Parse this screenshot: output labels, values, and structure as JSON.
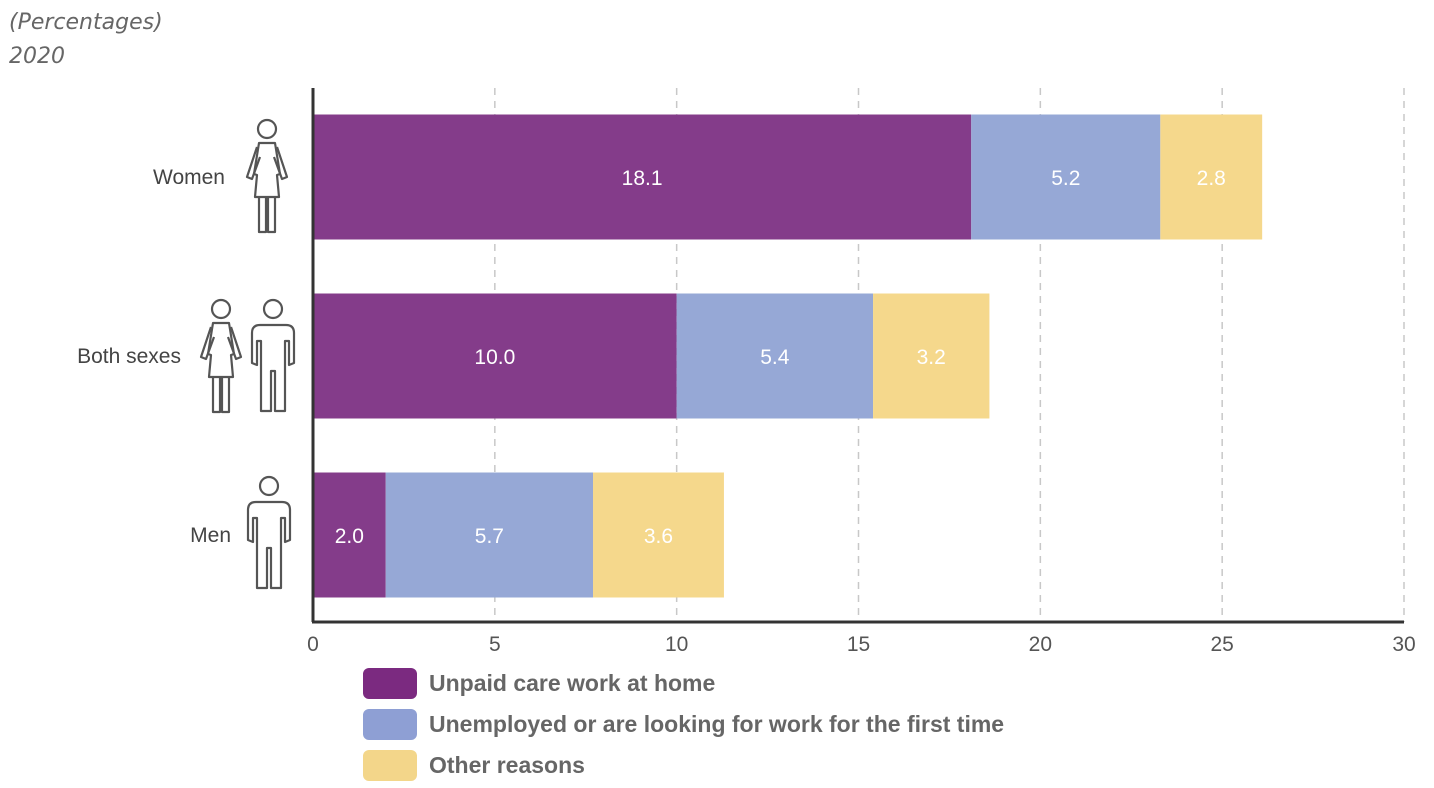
{
  "header": {
    "unit_note": "(Percentages)",
    "year": "2020"
  },
  "chart_data": {
    "type": "bar",
    "orientation": "horizontal",
    "stacked": true,
    "categories": [
      "Women",
      "Both sexes",
      "Men"
    ],
    "category_icons": [
      "female-figure-icon",
      "female-and-male-figures-icon",
      "male-figure-icon"
    ],
    "series": [
      {
        "name": "Unpaid care work at home",
        "color": "#843c8a",
        "values": [
          18.1,
          10.0,
          2.0
        ],
        "labels": [
          "18.1",
          "10.0",
          "2.0"
        ]
      },
      {
        "name": "Unemployed or are looking for work for the first time",
        "color": "#96a8d6",
        "values": [
          5.2,
          5.4,
          5.7
        ],
        "labels": [
          "5.2",
          "5.4",
          "5.7"
        ]
      },
      {
        "name": "Other reasons",
        "color": "#f5d88c",
        "values": [
          2.8,
          3.2,
          3.6
        ],
        "labels": [
          "2.8",
          "3.2",
          "3.6"
        ]
      }
    ],
    "x_ticks": [
      "0",
      "5",
      "10",
      "15",
      "20",
      "25",
      "30"
    ],
    "xlim": [
      0,
      30
    ],
    "grid": "vertical dashed",
    "legend_position": "bottom",
    "legend_swatch_colors": [
      "#7b2a80",
      "#8e9fd4",
      "#f3d68a"
    ]
  }
}
